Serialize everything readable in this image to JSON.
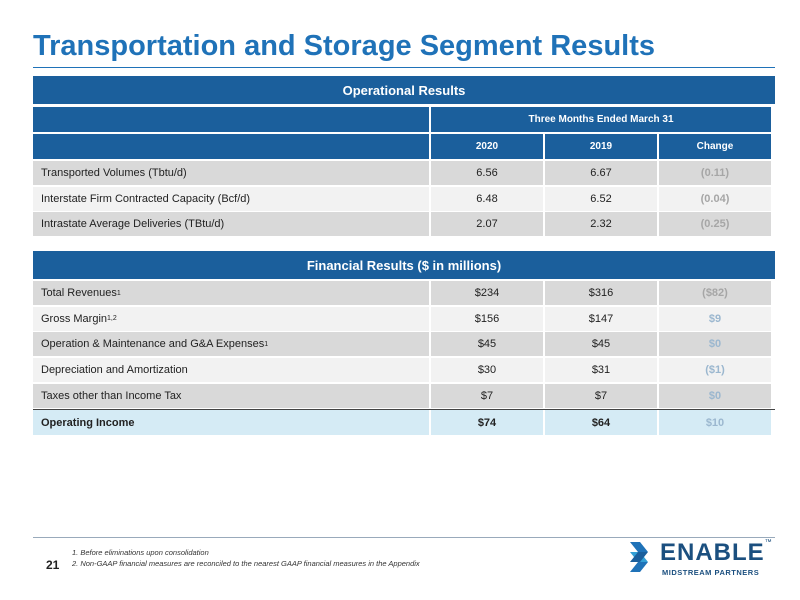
{
  "title": "Transportation and Storage Segment Results",
  "operational": {
    "header": "Operational Results",
    "period": "Three Months Ended March 31",
    "columns": [
      "2020",
      "2019",
      "Change"
    ],
    "rows": [
      {
        "label": "Transported Volumes (Tbtu/d)",
        "values": [
          "6.56",
          "6.67",
          "(0.11)"
        ]
      },
      {
        "label": "Interstate Firm Contracted Capacity (Bcf/d)",
        "values": [
          "6.48",
          "6.52",
          "(0.04)"
        ]
      },
      {
        "label": "Intrastate Average Deliveries (TBtu/d)",
        "values": [
          "2.07",
          "2.32",
          "(0.25)"
        ]
      }
    ]
  },
  "financial": {
    "header": "Financial Results ($ in millions)",
    "rows": [
      {
        "label": "Total Revenues",
        "sup": "1",
        "values": [
          "$234",
          "$316",
          "($82)"
        ]
      },
      {
        "label": "Gross Margin",
        "sup": "1,2",
        "values": [
          "$156",
          "$147",
          "$9"
        ]
      },
      {
        "label": "Operation & Maintenance and G&A Expenses",
        "sup": "1",
        "values": [
          "$45",
          "$45",
          "$0"
        ]
      },
      {
        "label": "Depreciation and Amortization",
        "values": [
          "$30",
          "$31",
          "($1)"
        ]
      },
      {
        "label": "Taxes other than Income Tax",
        "values": [
          "$7",
          "$7",
          "$0"
        ]
      }
    ],
    "total": {
      "label": "Operating Income",
      "values": [
        "$74",
        "$64",
        "$10"
      ]
    }
  },
  "footnotes": [
    "1. Before eliminations upon consolidation",
    "2. Non-GAAP financial measures are reconciled to the nearest GAAP financial measures in the Appendix"
  ],
  "page_number": "21",
  "logo": {
    "name": "ENABLE",
    "tm": "™",
    "tagline": "MIDSTREAM PARTNERS"
  }
}
